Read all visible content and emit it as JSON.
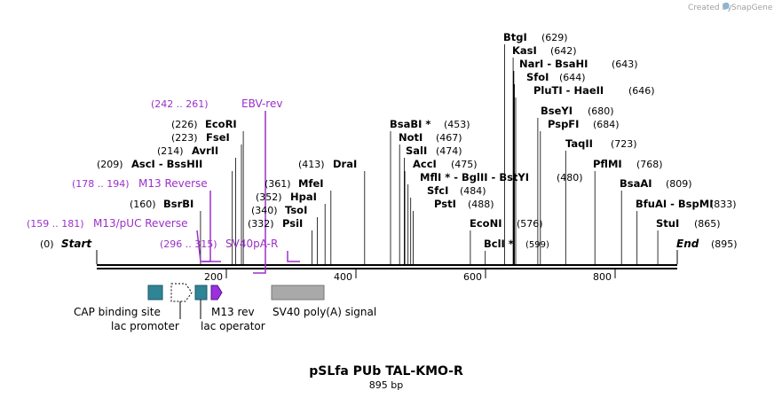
{
  "credit": {
    "created_by": "Created by",
    "app": "SnapGene"
  },
  "map": {
    "title": "pSLfa PUb TAL-KMO-R",
    "length_label": "895 bp",
    "length": 895,
    "start": {
      "name": "Start",
      "pos": "(0)"
    },
    "end": {
      "name": "End",
      "pos": "(895)"
    },
    "ticks": [
      "200",
      "400",
      "600",
      "800"
    ],
    "sites": [
      {
        "name": "BsrBI",
        "pos": "(160)",
        "bp": 160
      },
      {
        "name": "AscI - BssHII",
        "pos": "(209)",
        "bp": 209
      },
      {
        "name": "AvrII",
        "pos": "(214)",
        "bp": 214
      },
      {
        "name": "FseI",
        "pos": "(223)",
        "bp": 223
      },
      {
        "name": "EcoRI",
        "pos": "(226)",
        "bp": 226
      },
      {
        "name": "PsiI",
        "pos": "(332)",
        "bp": 332
      },
      {
        "name": "TsoI",
        "pos": "(340)",
        "bp": 340
      },
      {
        "name": "HpaI",
        "pos": "(352)",
        "bp": 352
      },
      {
        "name": "MfeI",
        "pos": "(361)",
        "bp": 361
      },
      {
        "name": "DraI",
        "pos": "(413)",
        "bp": 413
      },
      {
        "name": "BsaBI *",
        "pos": "(453)",
        "bp": 453
      },
      {
        "name": "NotI",
        "pos": "(467)",
        "bp": 467
      },
      {
        "name": "SalI",
        "pos": "(474)",
        "bp": 474
      },
      {
        "name": "AccI",
        "pos": "(475)",
        "bp": 475
      },
      {
        "name": "MflI * - BglII - BstYI",
        "pos": "(480)",
        "bp": 480
      },
      {
        "name": "SfcI",
        "pos": "(484)",
        "bp": 484
      },
      {
        "name": "PstI",
        "pos": "(488)",
        "bp": 488
      },
      {
        "name": "EcoNI",
        "pos": "(576)",
        "bp": 576
      },
      {
        "name": "BclI *",
        "pos": "(599)",
        "bp": 599
      },
      {
        "name": "BtgI",
        "pos": "(629)",
        "bp": 629
      },
      {
        "name": "KasI",
        "pos": "(642)",
        "bp": 642
      },
      {
        "name": "NarI - BsaHI",
        "pos": "(643)",
        "bp": 643
      },
      {
        "name": "SfoI",
        "pos": "(644)",
        "bp": 644
      },
      {
        "name": "PluTI - HaeII",
        "pos": "(646)",
        "bp": 646
      },
      {
        "name": "BseYI",
        "pos": "(680)",
        "bp": 680
      },
      {
        "name": "PspFI",
        "pos": "(684)",
        "bp": 684
      },
      {
        "name": "TaqII",
        "pos": "(723)",
        "bp": 723
      },
      {
        "name": "PflMI",
        "pos": "(768)",
        "bp": 768
      },
      {
        "name": "BsaAI",
        "pos": "(809)",
        "bp": 809
      },
      {
        "name": "BfuAI - BspMI",
        "pos": "(833)",
        "bp": 833
      },
      {
        "name": "StuI",
        "pos": "(865)",
        "bp": 865
      }
    ],
    "primers": [
      {
        "name": "EBV-rev",
        "range": "(242 .. 261)",
        "from": 242,
        "to": 261,
        "dir": "rev"
      },
      {
        "name": "M13 Reverse",
        "range": "(178 .. 194)",
        "from": 178,
        "to": 194,
        "dir": "rev"
      },
      {
        "name": "M13/pUC Reverse",
        "range": "(159 .. 181)",
        "from": 159,
        "to": 181,
        "dir": "rev"
      },
      {
        "name": "SV40pA-R",
        "range": "(296 .. 315)",
        "from": 296,
        "to": 315,
        "dir": "rev"
      }
    ],
    "features": [
      {
        "name": "CAP binding site",
        "color": "#2f8496"
      },
      {
        "name": "lac promoter",
        "color": "#ffffff"
      },
      {
        "name": "lac operator",
        "color": "#2f8496"
      },
      {
        "name": "M13 rev",
        "color": "#9b30e0"
      },
      {
        "name": "SV40 poly(A) signal",
        "color": "#a9a9a9"
      }
    ]
  }
}
